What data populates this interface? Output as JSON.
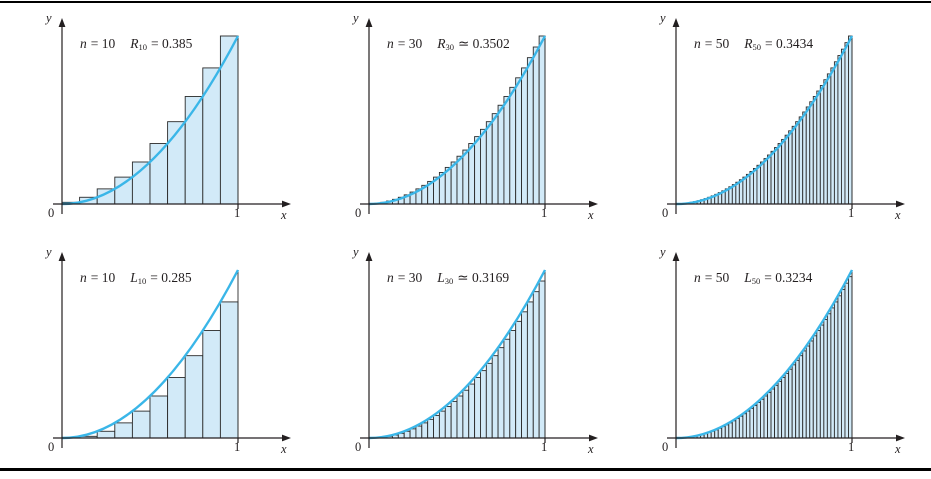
{
  "style": {
    "curve_color": "#3ab6e8",
    "bar_fill": "#d2eaf8",
    "bar_stroke": "#2b2b2b",
    "axis_color": "#231f20",
    "rule_color": "#000000",
    "background": "#ffffff"
  },
  "axes": {
    "y_label": "y",
    "x_label": "x",
    "origin_label": "0",
    "x_tick_label": "1",
    "x_range": [
      0,
      1
    ],
    "y_range": [
      0,
      1
    ]
  },
  "chart_data": [
    {
      "type": "bar",
      "panel": "top-left",
      "curve": "y = x^2 on [0,1]",
      "endpoint": "right",
      "n": 10,
      "sum": 0.385,
      "title_parts": {
        "var_letter": "n",
        "var_value": "= 10",
        "sum_letter": "R",
        "sum_subscript": "10",
        "sum_value": "= 0.385"
      },
      "values": [
        0.01,
        0.04,
        0.09,
        0.16,
        0.25,
        0.36,
        0.49,
        0.64,
        0.81,
        1
      ]
    },
    {
      "type": "bar",
      "panel": "top-middle",
      "curve": "y = x^2 on [0,1]",
      "endpoint": "right",
      "n": 30,
      "sum": 0.3502,
      "title_parts": {
        "var_letter": "n",
        "var_value": "= 30",
        "sum_letter": "R",
        "sum_subscript": "30",
        "sum_value": "≃ 0.3502"
      },
      "values": [
        0.0011,
        0.0044,
        0.01,
        0.0178,
        0.0278,
        0.04,
        0.0544,
        0.0711,
        0.09,
        0.1111,
        0.1344,
        0.16,
        0.1878,
        0.2178,
        0.25,
        0.2844,
        0.3211,
        0.36,
        0.4011,
        0.4444,
        0.49,
        0.5378,
        0.5878,
        0.64,
        0.6944,
        0.7511,
        0.81,
        0.8711,
        0.9344,
        1
      ]
    },
    {
      "type": "bar",
      "panel": "top-right",
      "curve": "y = x^2 on [0,1]",
      "endpoint": "right",
      "n": 50,
      "sum": 0.3434,
      "title_parts": {
        "var_letter": "n",
        "var_value": "= 50",
        "sum_letter": "R",
        "sum_subscript": "50",
        "sum_value": "= 0.3434"
      },
      "values": [
        0.0004,
        0.0016,
        0.0036,
        0.0064,
        0.01,
        0.0144,
        0.0196,
        0.0256,
        0.0324,
        0.04,
        0.0484,
        0.0576,
        0.0676,
        0.0784,
        0.09,
        0.1024,
        0.1156,
        0.1296,
        0.1444,
        0.16,
        0.1764,
        0.1936,
        0.2116,
        0.2304,
        0.25,
        0.2704,
        0.2916,
        0.3136,
        0.3364,
        0.36,
        0.3844,
        0.4096,
        0.4356,
        0.4624,
        0.49,
        0.5184,
        0.5476,
        0.5776,
        0.6084,
        0.64,
        0.6724,
        0.7056,
        0.7396,
        0.7744,
        0.81,
        0.8464,
        0.8836,
        0.9216,
        0.9604,
        1
      ]
    },
    {
      "type": "bar",
      "panel": "bottom-left",
      "curve": "y = x^2 on [0,1]",
      "endpoint": "left",
      "n": 10,
      "sum": 0.285,
      "title_parts": {
        "var_letter": "n",
        "var_value": "= 10",
        "sum_letter": "L",
        "sum_subscript": "10",
        "sum_value": "= 0.285"
      },
      "values": [
        0,
        0.01,
        0.04,
        0.09,
        0.16,
        0.25,
        0.36,
        0.49,
        0.64,
        0.81
      ]
    },
    {
      "type": "bar",
      "panel": "bottom-middle",
      "curve": "y = x^2 on [0,1]",
      "endpoint": "left",
      "n": 30,
      "sum": 0.3169,
      "title_parts": {
        "var_letter": "n",
        "var_value": "= 30",
        "sum_letter": "L",
        "sum_subscript": "30",
        "sum_value": "≃ 0.3169"
      },
      "values": [
        0,
        0.0011,
        0.0044,
        0.01,
        0.0178,
        0.0278,
        0.04,
        0.0544,
        0.0711,
        0.09,
        0.1111,
        0.1344,
        0.16,
        0.1878,
        0.2178,
        0.25,
        0.2844,
        0.3211,
        0.36,
        0.4011,
        0.4444,
        0.49,
        0.5378,
        0.5878,
        0.64,
        0.6944,
        0.7511,
        0.81,
        0.8711,
        0.9344
      ]
    },
    {
      "type": "bar",
      "panel": "bottom-right",
      "curve": "y = x^2 on [0,1]",
      "endpoint": "left",
      "n": 50,
      "sum": 0.3234,
      "title_parts": {
        "var_letter": "n",
        "var_value": "= 50",
        "sum_letter": "L",
        "sum_subscript": "50",
        "sum_value": "= 0.3234"
      },
      "values": [
        0,
        0.0004,
        0.0016,
        0.0036,
        0.0064,
        0.01,
        0.0144,
        0.0196,
        0.0256,
        0.0324,
        0.04,
        0.0484,
        0.0576,
        0.0676,
        0.0784,
        0.09,
        0.1024,
        0.1156,
        0.1296,
        0.1444,
        0.16,
        0.1764,
        0.1936,
        0.2116,
        0.2304,
        0.25,
        0.2704,
        0.2916,
        0.3136,
        0.3364,
        0.36,
        0.3844,
        0.4096,
        0.4356,
        0.4624,
        0.49,
        0.5184,
        0.5476,
        0.5776,
        0.6084,
        0.64,
        0.6724,
        0.7056,
        0.7396,
        0.7744,
        0.81,
        0.8464,
        0.8836,
        0.9216,
        0.9604
      ]
    }
  ]
}
